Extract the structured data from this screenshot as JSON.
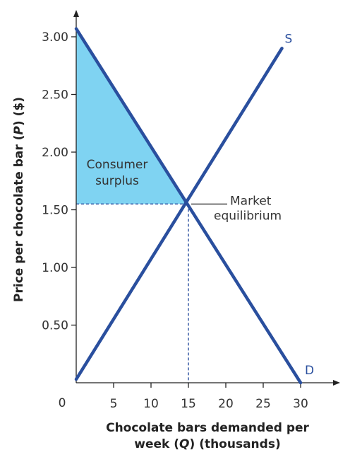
{
  "chart_data": {
    "type": "line",
    "xlabel": {
      "line1": "Chocolate bars demanded per",
      "pre": "week (",
      "var": "Q",
      "post": ") (thousands)"
    },
    "ylabel": {
      "pre": "Price per chocolate bar (",
      "var": "P",
      "post": ") ($)"
    },
    "origin_label": "0",
    "x_ticks": [
      {
        "value": 5,
        "label": "5"
      },
      {
        "value": 10,
        "label": "10"
      },
      {
        "value": 15,
        "label": "15"
      },
      {
        "value": 20,
        "label": "20"
      },
      {
        "value": 25,
        "label": "25"
      },
      {
        "value": 30,
        "label": "30"
      }
    ],
    "y_ticks": [
      {
        "value": 0.5,
        "label": "0.50"
      },
      {
        "value": 1.0,
        "label": "1.00"
      },
      {
        "value": 1.5,
        "label": "1.50"
      },
      {
        "value": 2.0,
        "label": "2.00"
      },
      {
        "value": 2.5,
        "label": "2.50"
      },
      {
        "value": 3.0,
        "label": "3.00"
      }
    ],
    "xlim": [
      0,
      35
    ],
    "ylim": [
      0,
      3.2
    ],
    "series": [
      {
        "name": "S",
        "color": "#2a4f9e",
        "points": [
          [
            0,
            0.03
          ],
          [
            27.5,
            2.9
          ]
        ]
      },
      {
        "name": "D",
        "color": "#2a4f9e",
        "points": [
          [
            0,
            3.07
          ],
          [
            30,
            0.0
          ]
        ]
      }
    ],
    "equilibrium": {
      "x": 15,
      "y": 1.55,
      "label_line1": "Market",
      "label_line2": "equilibrium"
    },
    "consumer_surplus": {
      "label_line1": "Consumer",
      "label_line2": "surplus",
      "color": "#7fd3f2",
      "polygon": [
        [
          0,
          3.07
        ],
        [
          0,
          1.55
        ],
        [
          15,
          1.55
        ]
      ]
    },
    "guide_line_color": "#2a4f9e",
    "axis_color": "#222222"
  }
}
